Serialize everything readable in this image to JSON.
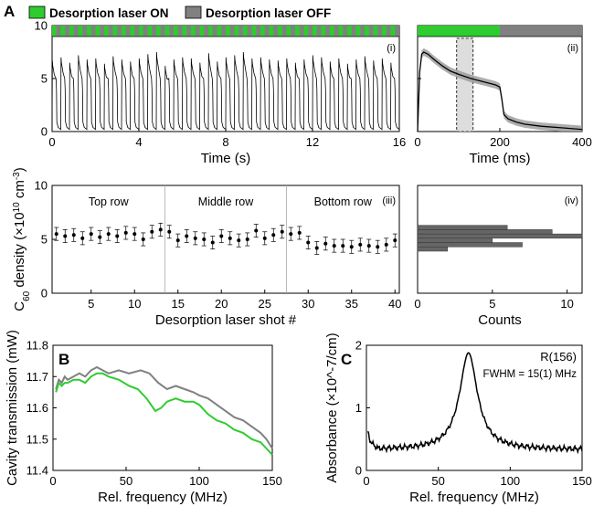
{
  "legend": {
    "on_label": "Desorption laser ON",
    "off_label": "Desorption laser OFF",
    "on_color": "#2ecc2e",
    "off_color": "#808080"
  },
  "panels": {
    "A": "A",
    "B": "B",
    "C": "C"
  },
  "subpanels": {
    "i": "(i)",
    "ii": "(ii)",
    "iii": "(iii)",
    "iv": "(iv)"
  },
  "shared_ylabel": "C60 density (×10^10 cm^-3)",
  "chart_data": [
    {
      "id": "A-i",
      "type": "line",
      "xlabel": "Time (s)",
      "xlim": [
        0,
        16
      ],
      "ylim": [
        0,
        10
      ],
      "xticks": [
        "0",
        "4",
        "8",
        "12",
        "16"
      ],
      "yticks": [
        "0",
        "5",
        "10"
      ],
      "series": [
        {
          "pulse_period_s": 0.4,
          "pulses": 40,
          "peak_density": [
            6.7,
            7.0,
            6.5,
            7.2,
            6.8,
            6.9,
            6.4,
            7.1,
            6.8,
            6.6,
            6.9,
            7.3,
            7.5,
            6.2,
            6.8,
            7.0,
            6.9,
            6.5,
            7.4,
            6.6,
            7.0,
            7.2,
            7.5,
            6.9,
            7.0,
            6.8,
            6.7,
            6.9,
            6.5,
            6.8,
            7.2,
            7.0,
            6.6,
            6.9,
            6.4,
            6.8,
            7.1,
            6.7,
            6.9,
            6.5
          ],
          "plateau_density": 5.0,
          "baseline_density": 0.2,
          "color": "#000000"
        }
      ]
    },
    {
      "id": "A-ii",
      "type": "line",
      "xlabel": "Time (ms)",
      "xlim": [
        0,
        400
      ],
      "ylim": [
        0,
        10
      ],
      "xticks": [
        "0",
        "200",
        "400"
      ],
      "laser_on_ms": [
        0,
        200
      ],
      "highlight_window_ms": [
        95,
        135
      ],
      "series": [
        {
          "x": [
            0,
            5,
            10,
            15,
            25,
            40,
            60,
            80,
            100,
            130,
            160,
            190,
            200,
            205,
            210,
            220,
            240,
            260,
            300,
            350,
            400
          ],
          "y": [
            0,
            5.6,
            7.3,
            7.5,
            7.3,
            6.8,
            6.2,
            5.7,
            5.4,
            5.0,
            4.7,
            4.4,
            4.2,
            3.0,
            1.6,
            1.2,
            0.9,
            0.7,
            0.5,
            0.35,
            0.2
          ],
          "band": 0.35,
          "color": "#000000",
          "band_color": "#999999"
        }
      ]
    },
    {
      "id": "A-iii",
      "type": "scatter",
      "xlabel": "Desorption laser shot #",
      "xlim": [
        0.5,
        40.5
      ],
      "ylim": [
        0,
        10
      ],
      "xticks": [
        "5",
        "10",
        "15",
        "20",
        "25",
        "30",
        "35",
        "40"
      ],
      "yticks": [
        "0",
        "5",
        "10"
      ],
      "groups": [
        "Top row",
        "Middle row",
        "Bottom row"
      ],
      "dividers_after_shot": [
        13.5,
        27.5
      ],
      "series": [
        {
          "x": [
            1,
            2,
            3,
            4,
            5,
            6,
            7,
            8,
            9,
            10,
            11,
            12,
            13,
            14,
            15,
            16,
            17,
            18,
            19,
            20,
            21,
            22,
            23,
            24,
            25,
            26,
            27,
            28,
            29,
            30,
            31,
            32,
            33,
            34,
            35,
            36,
            37,
            38,
            39,
            40
          ],
          "y": [
            5.5,
            5.3,
            5.4,
            5.1,
            5.5,
            5.2,
            5.5,
            5.3,
            5.6,
            5.5,
            5.0,
            5.7,
            5.9,
            5.7,
            4.9,
            5.3,
            5.1,
            5.0,
            4.7,
            5.3,
            5.1,
            4.9,
            5.0,
            5.8,
            5.1,
            5.4,
            5.7,
            5.5,
            5.6,
            4.7,
            4.2,
            4.6,
            4.4,
            4.4,
            4.3,
            4.5,
            4.4,
            4.3,
            4.5,
            4.9
          ],
          "err": 0.6,
          "color": "#000000"
        }
      ]
    },
    {
      "id": "A-iv",
      "type": "bar",
      "orientation": "horizontal",
      "xlabel": "Counts",
      "xlim": [
        0,
        11
      ],
      "ylim": [
        0,
        10
      ],
      "xticks": [
        "0",
        "5",
        "10"
      ],
      "bins_center": [
        4.1,
        4.5,
        4.9,
        5.3,
        5.7,
        6.1
      ],
      "values": [
        2,
        7,
        5,
        11,
        9,
        6
      ],
      "color": "#666666"
    },
    {
      "id": "B",
      "type": "line",
      "xlabel": "Rel. frequency (MHz)",
      "ylabel": "Cavity transmission (mW)",
      "xlim": [
        0,
        150
      ],
      "ylim": [
        11.4,
        11.8
      ],
      "xticks": [
        "0",
        "50",
        "100",
        "150"
      ],
      "yticks": [
        "11.4",
        "11.5",
        "11.6",
        "11.7",
        "11.8"
      ],
      "series": [
        {
          "color": "#808080",
          "x": [
            2,
            4,
            6,
            8,
            10,
            14,
            18,
            22,
            26,
            30,
            34,
            38,
            45,
            52,
            60,
            66,
            72,
            78,
            84,
            90,
            96,
            100,
            106,
            112,
            118,
            124,
            130,
            136,
            142,
            146,
            150
          ],
          "y": [
            11.66,
            11.69,
            11.68,
            11.7,
            11.69,
            11.7,
            11.71,
            11.7,
            11.72,
            11.73,
            11.72,
            11.71,
            11.72,
            11.71,
            11.72,
            11.71,
            11.68,
            11.66,
            11.67,
            11.66,
            11.65,
            11.64,
            11.63,
            11.61,
            11.59,
            11.57,
            11.56,
            11.54,
            11.52,
            11.5,
            11.47
          ]
        },
        {
          "color": "#2ecc2e",
          "x": [
            2,
            4,
            6,
            8,
            10,
            14,
            18,
            22,
            26,
            30,
            34,
            38,
            45,
            52,
            58,
            64,
            70,
            74,
            78,
            84,
            90,
            96,
            100,
            106,
            112,
            118,
            124,
            130,
            136,
            142,
            146,
            150
          ],
          "y": [
            11.65,
            11.68,
            11.67,
            11.68,
            11.68,
            11.69,
            11.69,
            11.68,
            11.7,
            11.71,
            11.71,
            11.7,
            11.69,
            11.67,
            11.66,
            11.63,
            11.59,
            11.6,
            11.62,
            11.63,
            11.62,
            11.62,
            11.61,
            11.58,
            11.56,
            11.55,
            11.53,
            11.52,
            11.5,
            11.49,
            11.47,
            11.45
          ]
        }
      ]
    },
    {
      "id": "C",
      "type": "line",
      "xlabel": "Rel. frequency (MHz)",
      "ylabel": "Absorbance (×10^-7/cm)",
      "xlim": [
        0,
        150
      ],
      "ylim": [
        0,
        2
      ],
      "xticks": [
        "0",
        "50",
        "100",
        "150"
      ],
      "yticks": [
        "0",
        "1",
        "2"
      ],
      "annotation_line": "R(156)",
      "annotation_fwhm": "FWHM = 15(1) MHz",
      "series": [
        {
          "color": "#000000",
          "center": 71,
          "fwhm": 15,
          "peak": 1.88,
          "baseline": 0.33
        }
      ]
    }
  ]
}
